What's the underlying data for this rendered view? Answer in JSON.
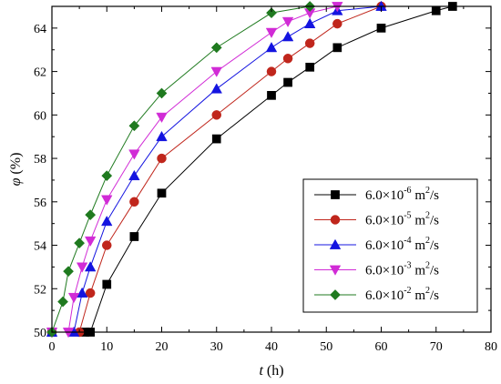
{
  "chart_data": {
    "type": "line",
    "xlabel": "t (h)",
    "ylabel": "φ (%)",
    "xlabel_parts": {
      "symbol": "t",
      "unit": " (h)"
    },
    "ylabel_parts": {
      "symbol": "φ",
      "unit": " (%)"
    },
    "xlim": [
      0,
      80
    ],
    "ylim": [
      50,
      65
    ],
    "xticks": [
      0,
      10,
      20,
      30,
      40,
      50,
      60,
      70,
      80
    ],
    "yticks": [
      50,
      52,
      54,
      56,
      58,
      60,
      62,
      64
    ],
    "grid": false,
    "legend_position": "bottom-right",
    "series": [
      {
        "name": "6.0×10⁻⁶ m²/s",
        "legend": {
          "mant": "6.0×10",
          "exp": "-6",
          "unit": " m",
          "unit_exp": "2",
          "tail": "/s"
        },
        "color": "#000000",
        "marker": "square",
        "x": [
          0,
          6,
          7,
          10,
          15,
          20,
          30,
          40,
          43,
          47,
          52,
          60,
          70,
          73
        ],
        "y": [
          50,
          50,
          50,
          52.2,
          54.4,
          56.4,
          58.9,
          60.9,
          61.5,
          62.2,
          63.1,
          64,
          64.8,
          65
        ]
      },
      {
        "name": "6.0×10⁻⁵ m²/s",
        "legend": {
          "mant": "6.0×10",
          "exp": "-5",
          "unit": " m",
          "unit_exp": "2",
          "tail": "/s"
        },
        "color": "#c0261c",
        "marker": "circle",
        "x": [
          0,
          5,
          7,
          10,
          15,
          20,
          30,
          40,
          43,
          47,
          52,
          60
        ],
        "y": [
          50,
          50,
          51.8,
          54,
          56,
          58,
          60,
          62,
          62.6,
          63.3,
          64.2,
          65
        ]
      },
      {
        "name": "6.0×10⁻⁴ m²/s",
        "legend": {
          "mant": "6.0×10",
          "exp": "-4",
          "unit": " m",
          "unit_exp": "2",
          "tail": "/s"
        },
        "color": "#1414e0",
        "marker": "triangle-up",
        "x": [
          0,
          4,
          5.5,
          7,
          10,
          15,
          20,
          30,
          40,
          43,
          47,
          52,
          60
        ],
        "y": [
          50,
          50,
          51.8,
          53,
          55.1,
          57.2,
          59,
          61.2,
          63.1,
          63.6,
          64.2,
          64.8,
          65
        ]
      },
      {
        "name": "6.0×10⁻³ m²/s",
        "legend": {
          "mant": "6.0×10",
          "exp": "-3",
          "unit": " m",
          "unit_exp": "2",
          "tail": "/s"
        },
        "color": "#d12bd6",
        "marker": "triangle-down",
        "x": [
          0,
          3,
          4,
          5.5,
          7,
          10,
          15,
          20,
          30,
          40,
          43,
          47,
          52
        ],
        "y": [
          50,
          50,
          51.6,
          53,
          54.2,
          56.1,
          58.2,
          59.9,
          62,
          63.8,
          64.3,
          64.7,
          65
        ]
      },
      {
        "name": "6.0×10⁻² m²/s",
        "legend": {
          "mant": "6.0×10",
          "exp": "-2",
          "unit": " m",
          "unit_exp": "2",
          "tail": "/s"
        },
        "color": "#1f7a1f",
        "marker": "diamond",
        "x": [
          0,
          2,
          3,
          5,
          7,
          10,
          15,
          20,
          30,
          40,
          47
        ],
        "y": [
          50,
          51.4,
          52.8,
          54.1,
          55.4,
          57.2,
          59.5,
          61,
          63.1,
          64.7,
          65
        ]
      }
    ]
  }
}
